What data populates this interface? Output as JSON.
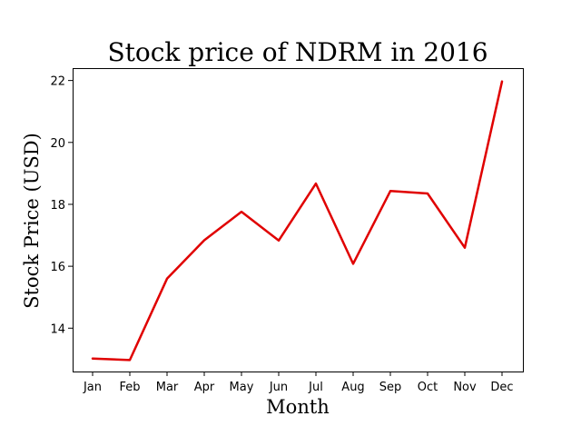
{
  "chart_data": {
    "type": "line",
    "title": "Stock price of NDRM in 2016",
    "xlabel": "Month",
    "ylabel": "Stock Price (USD)",
    "categories": [
      "Jan",
      "Feb",
      "Mar",
      "Apr",
      "May",
      "Jun",
      "Jul",
      "Aug",
      "Sep",
      "Oct",
      "Nov",
      "Dec"
    ],
    "series": [
      {
        "values": [
          13.02,
          12.97,
          15.6,
          16.84,
          17.76,
          16.83,
          18.67,
          16.08,
          18.43,
          18.35,
          16.6,
          21.97
        ],
        "color": "#e00000"
      }
    ],
    "ylim": [
      12.6,
      22.4
    ],
    "yticks": [
      14,
      16,
      18,
      20,
      22
    ],
    "grid": false,
    "legend": "none"
  }
}
